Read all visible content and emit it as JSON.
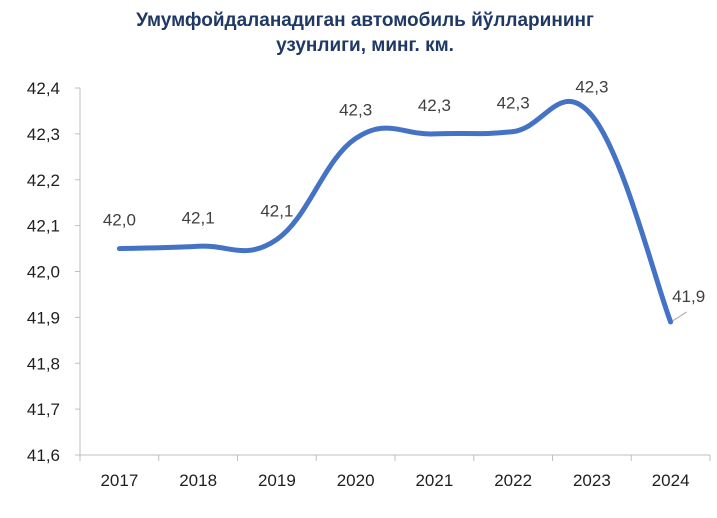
{
  "chart_data": {
    "type": "line",
    "title_lines": [
      "Умумфойдаланадиган автомобиль йўлларининг",
      "узунлиги, минг. км."
    ],
    "categories": [
      "2017",
      "2018",
      "2019",
      "2020",
      "2021",
      "2022",
      "2023",
      "2024"
    ],
    "values": [
      42.05,
      42.055,
      42.07,
      42.29,
      42.3,
      42.305,
      42.34,
      41.89
    ],
    "data_labels": [
      "42,0",
      "42,1",
      "42,1",
      "42,3",
      "42,3",
      "42,3",
      "42,3",
      "41,9"
    ],
    "y_tick_labels": [
      "41,6",
      "41,7",
      "41,8",
      "41,9",
      "42,0",
      "42,1",
      "42,2",
      "42,3",
      "42,4"
    ],
    "ylim": [
      41.6,
      42.4
    ],
    "y_step": 0.1,
    "smooth": true,
    "line_color": "#4472c4",
    "grid": false,
    "legend": "none"
  }
}
